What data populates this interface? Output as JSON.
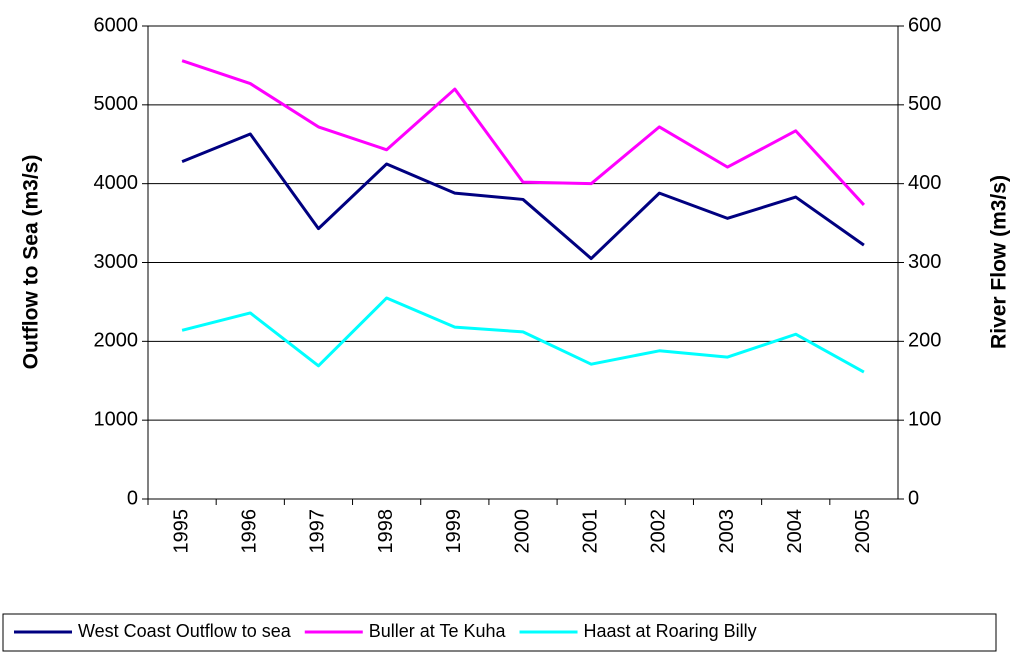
{
  "chart_data": {
    "type": "line",
    "y_label": "Outflow to Sea (m3/s)",
    "y2_label": "River Flow (m3/s)",
    "categories": [
      "1995",
      "1996",
      "1997",
      "1998",
      "1999",
      "2000",
      "2001",
      "2002",
      "2003",
      "2004",
      "2005"
    ],
    "series": [
      {
        "name": "West Coast Outflow to sea",
        "color": "#000080",
        "values": [
          4280,
          4630,
          3430,
          4250,
          3880,
          3800,
          3050,
          3880,
          3560,
          3830,
          3220
        ]
      },
      {
        "name": "Buller at Te Kuha",
        "color": "#ff00ff",
        "axis": "y2",
        "values": [
          556,
          527,
          472,
          443,
          520,
          402,
          400,
          472,
          421,
          467,
          373
        ]
      },
      {
        "name": "Haast at Roaring Billy",
        "color": "#00ffff",
        "axis": "y2",
        "values": [
          214,
          236,
          169,
          255,
          218,
          212,
          171,
          188,
          180,
          209,
          161
        ]
      }
    ],
    "ylim": [
      0,
      6000
    ],
    "yticks": [
      0,
      1000,
      2000,
      3000,
      4000,
      5000,
      6000
    ],
    "y2lim": [
      0,
      600
    ],
    "y2ticks": [
      0,
      100,
      200,
      300,
      400,
      500,
      600
    ],
    "grid": true,
    "legend": "bottom"
  }
}
